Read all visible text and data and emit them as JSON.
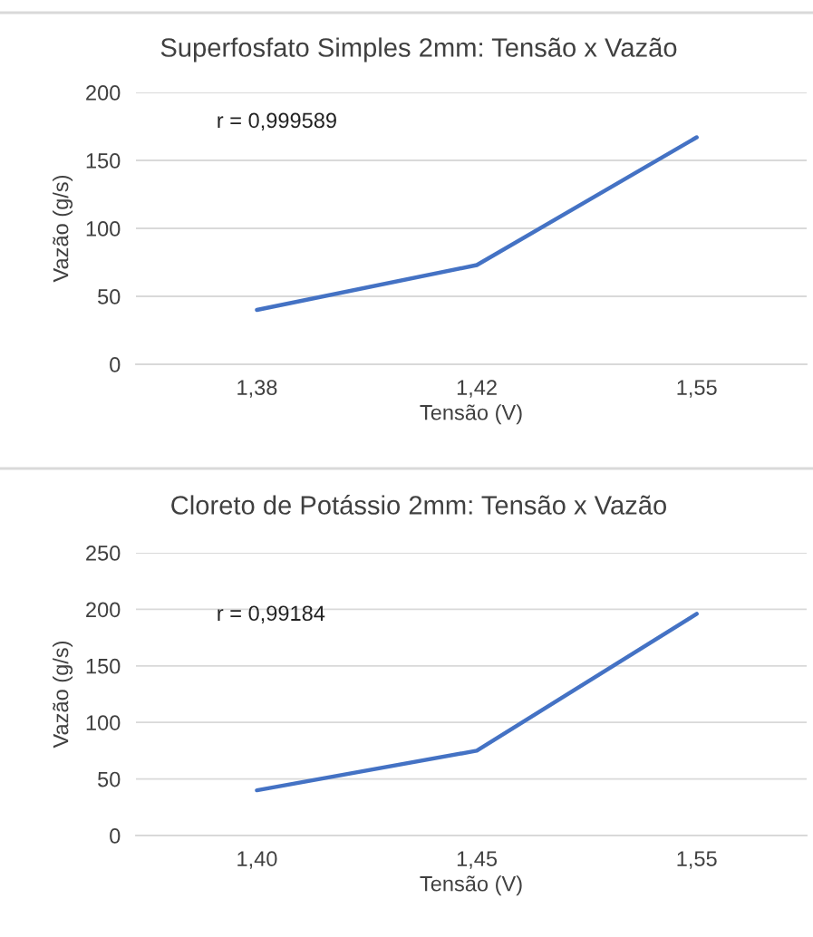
{
  "chart_data": [
    {
      "type": "line",
      "title": "Superfosfato Simples 2mm: Tensão x Vazão",
      "xlabel": "Tensão (V)",
      "ylabel": "Vazão (g/s)",
      "categories": [
        "1,38",
        "1,42",
        "1,55"
      ],
      "series": [
        {
          "color": "#4472c4",
          "values": [
            40,
            73,
            167
          ]
        }
      ],
      "ylim": [
        0,
        200
      ],
      "yticks": [
        0,
        50,
        100,
        150,
        200
      ],
      "grid": "y",
      "annotations": [
        "r = 0,999589"
      ]
    },
    {
      "type": "line",
      "title": "Cloreto de Potássio 2mm: Tensão x Vazão",
      "xlabel": "Tensão (V)",
      "ylabel": "Vazão (g/s)",
      "categories": [
        "1,40",
        "1,45",
        "1,55"
      ],
      "series": [
        {
          "color": "#4472c4",
          "values": [
            40,
            75,
            196
          ]
        }
      ],
      "ylim": [
        0,
        250
      ],
      "yticks": [
        0,
        50,
        100,
        150,
        200,
        250
      ],
      "grid": "y",
      "annotations": [
        "r = 0,99184"
      ]
    }
  ]
}
